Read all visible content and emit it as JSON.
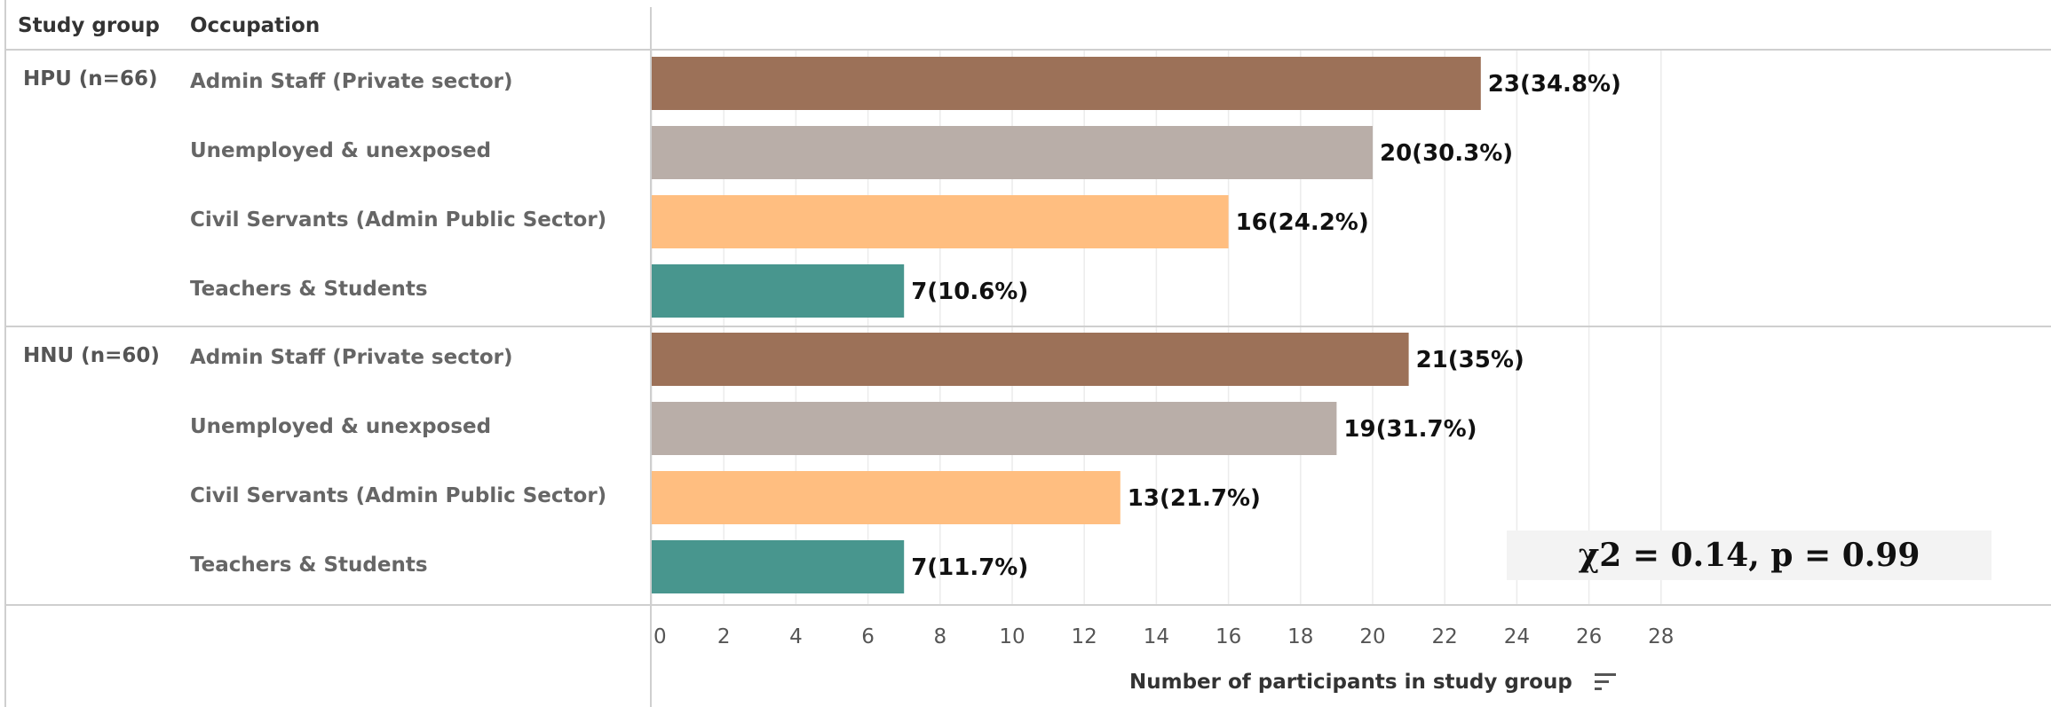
{
  "headers": {
    "study_group": "Study group",
    "occupation": "Occupation"
  },
  "groups": [
    {
      "label": "HPU (n=66)"
    },
    {
      "label": "HNU (n=60)"
    }
  ],
  "annotation": "χ2 = 0.14, p = 0.99",
  "colors": {
    "Admin Staff (Private sector)": "#9c7158",
    "Unemployed & unexposed": "#b9aea8",
    "Civil Servants (Admin Public Sector)": "#ffbe80",
    "Teachers & Students": "#48968e"
  },
  "chart_data": {
    "type": "bar",
    "orientation": "horizontal",
    "xlabel": "Number of participants in study group",
    "xlim": [
      0,
      28
    ],
    "xticks": [
      "0",
      "2",
      "4",
      "6",
      "8",
      "10",
      "12",
      "14",
      "16",
      "18",
      "20",
      "22",
      "24",
      "26",
      "28"
    ],
    "grid": true,
    "groups": [
      {
        "group": "HPU (n=66)",
        "bars": [
          {
            "category": "Admin Staff (Private sector)",
            "value": 23,
            "label": "23(34.8%)"
          },
          {
            "category": "Unemployed & unexposed",
            "value": 20,
            "label": "20(30.3%)"
          },
          {
            "category": "Civil Servants (Admin Public Sector)",
            "value": 16,
            "label": "16(24.2%)"
          },
          {
            "category": "Teachers & Students",
            "value": 7,
            "label": "7(10.6%)"
          }
        ]
      },
      {
        "group": "HNU (n=60)",
        "bars": [
          {
            "category": "Admin Staff (Private sector)",
            "value": 21,
            "label": "21(35%)"
          },
          {
            "category": "Unemployed & unexposed",
            "value": 19,
            "label": "19(31.7%)"
          },
          {
            "category": "Civil Servants (Admin Public Sector)",
            "value": 13,
            "label": "13(21.7%)"
          },
          {
            "category": "Teachers & Students",
            "value": 7,
            "label": "7(11.7%)"
          }
        ]
      }
    ]
  }
}
